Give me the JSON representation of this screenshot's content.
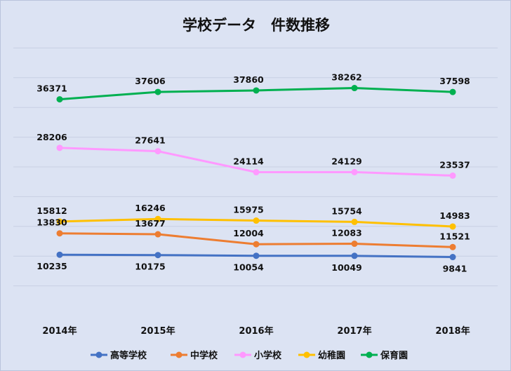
{
  "chart_data": {
    "type": "line",
    "title": "学校データ　件数推移",
    "categories": [
      "2014年",
      "2015年",
      "2016年",
      "2017年",
      "2018年"
    ],
    "ylim": [
      0,
      45000
    ],
    "grid": true,
    "legend_position": "bottom",
    "series": [
      {
        "name": "高等学校",
        "color": "#4472c4",
        "values": [
          10235,
          10175,
          10054,
          10049,
          9841
        ],
        "label_pos": "below"
      },
      {
        "name": "中学校",
        "color": "#ed7d31",
        "values": [
          13830,
          13677,
          12004,
          12083,
          11521
        ],
        "label_pos": "above"
      },
      {
        "name": "小学校",
        "color": "#ff99ff",
        "values": [
          28206,
          27641,
          24114,
          24129,
          23537
        ],
        "label_pos": "above"
      },
      {
        "name": "幼稚園",
        "color": "#ffc000",
        "values": [
          15812,
          16246,
          15975,
          15754,
          14983
        ],
        "label_pos": "above"
      },
      {
        "name": "保育園",
        "color": "#00b050",
        "values": [
          36371,
          37606,
          37860,
          38262,
          37598
        ],
        "label_pos": "above"
      }
    ]
  }
}
